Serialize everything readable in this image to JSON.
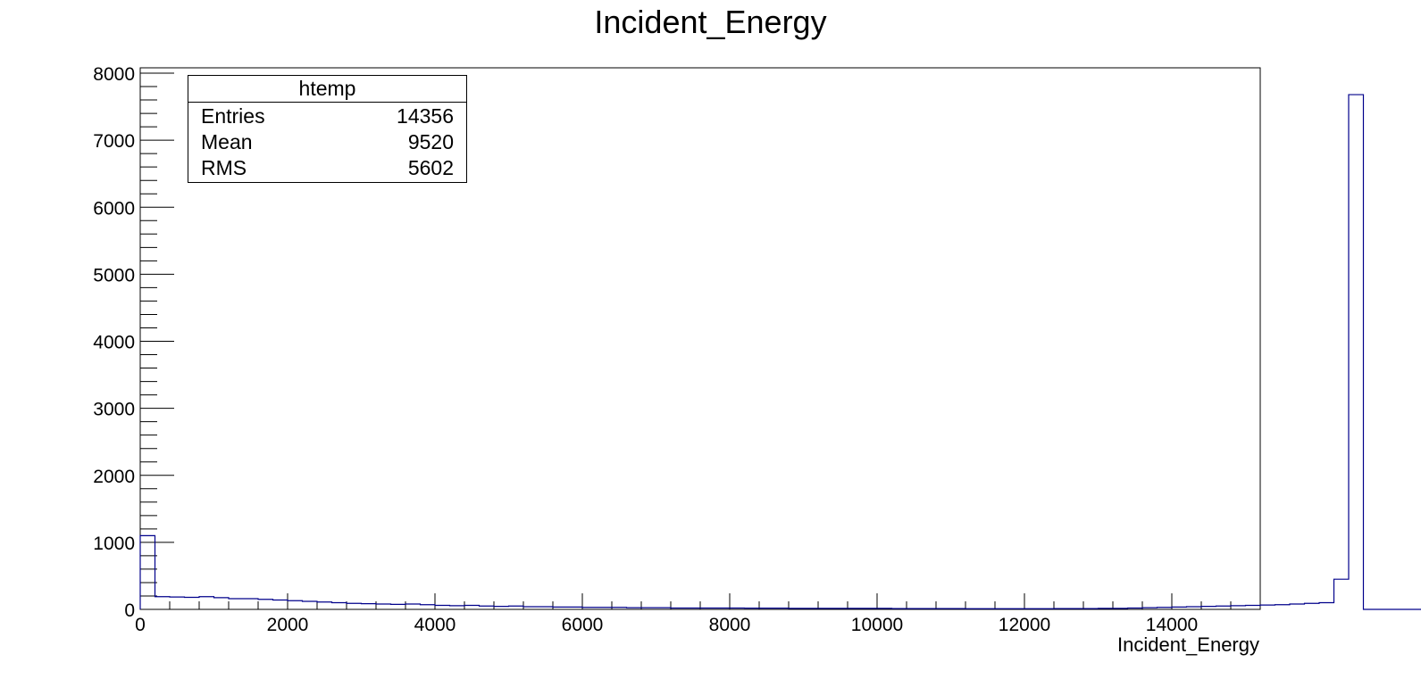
{
  "chart_data": {
    "type": "bar",
    "title": "Incident_Energy",
    "xlabel": "Incident_Energy",
    "ylabel": "",
    "xlim": [
      0,
      15200
    ],
    "ylim": [
      0,
      8080
    ],
    "grid": false,
    "bin_edges_start": 0,
    "bin_width": 200,
    "x_ticks": [
      "0",
      "2000",
      "4000",
      "6000",
      "8000",
      "10000",
      "12000",
      "14000"
    ],
    "y_ticks": [
      "0",
      "1000",
      "2000",
      "3000",
      "4000",
      "5000",
      "6000",
      "7000",
      "8000"
    ],
    "line_color": "#00008b",
    "series": [
      {
        "values": [
          1100,
          190,
          185,
          180,
          190,
          175,
          160,
          160,
          150,
          140,
          130,
          120,
          110,
          100,
          90,
          85,
          80,
          75,
          80,
          70,
          60,
          55,
          60,
          50,
          45,
          50,
          40,
          40,
          35,
          35,
          30,
          30,
          30,
          25,
          25,
          25,
          20,
          20,
          20,
          20,
          20,
          18,
          18,
          18,
          15,
          15,
          15,
          15,
          15,
          15,
          15,
          12,
          12,
          12,
          12,
          12,
          10,
          10,
          10,
          10,
          10,
          10,
          12,
          12,
          12,
          15,
          15,
          20,
          25,
          30,
          35,
          40,
          45,
          50,
          55,
          60,
          65,
          70,
          80,
          90,
          100,
          450,
          7680,
          0,
          0,
          0,
          0,
          0,
          0,
          0,
          0,
          0,
          0,
          0,
          0,
          0
        ]
      }
    ],
    "stats": {
      "name": "htemp",
      "rows": [
        {
          "label": "Entries",
          "value": "14356"
        },
        {
          "label": "Mean",
          "value": "9520"
        },
        {
          "label": "RMS",
          "value": "5602"
        }
      ]
    }
  }
}
